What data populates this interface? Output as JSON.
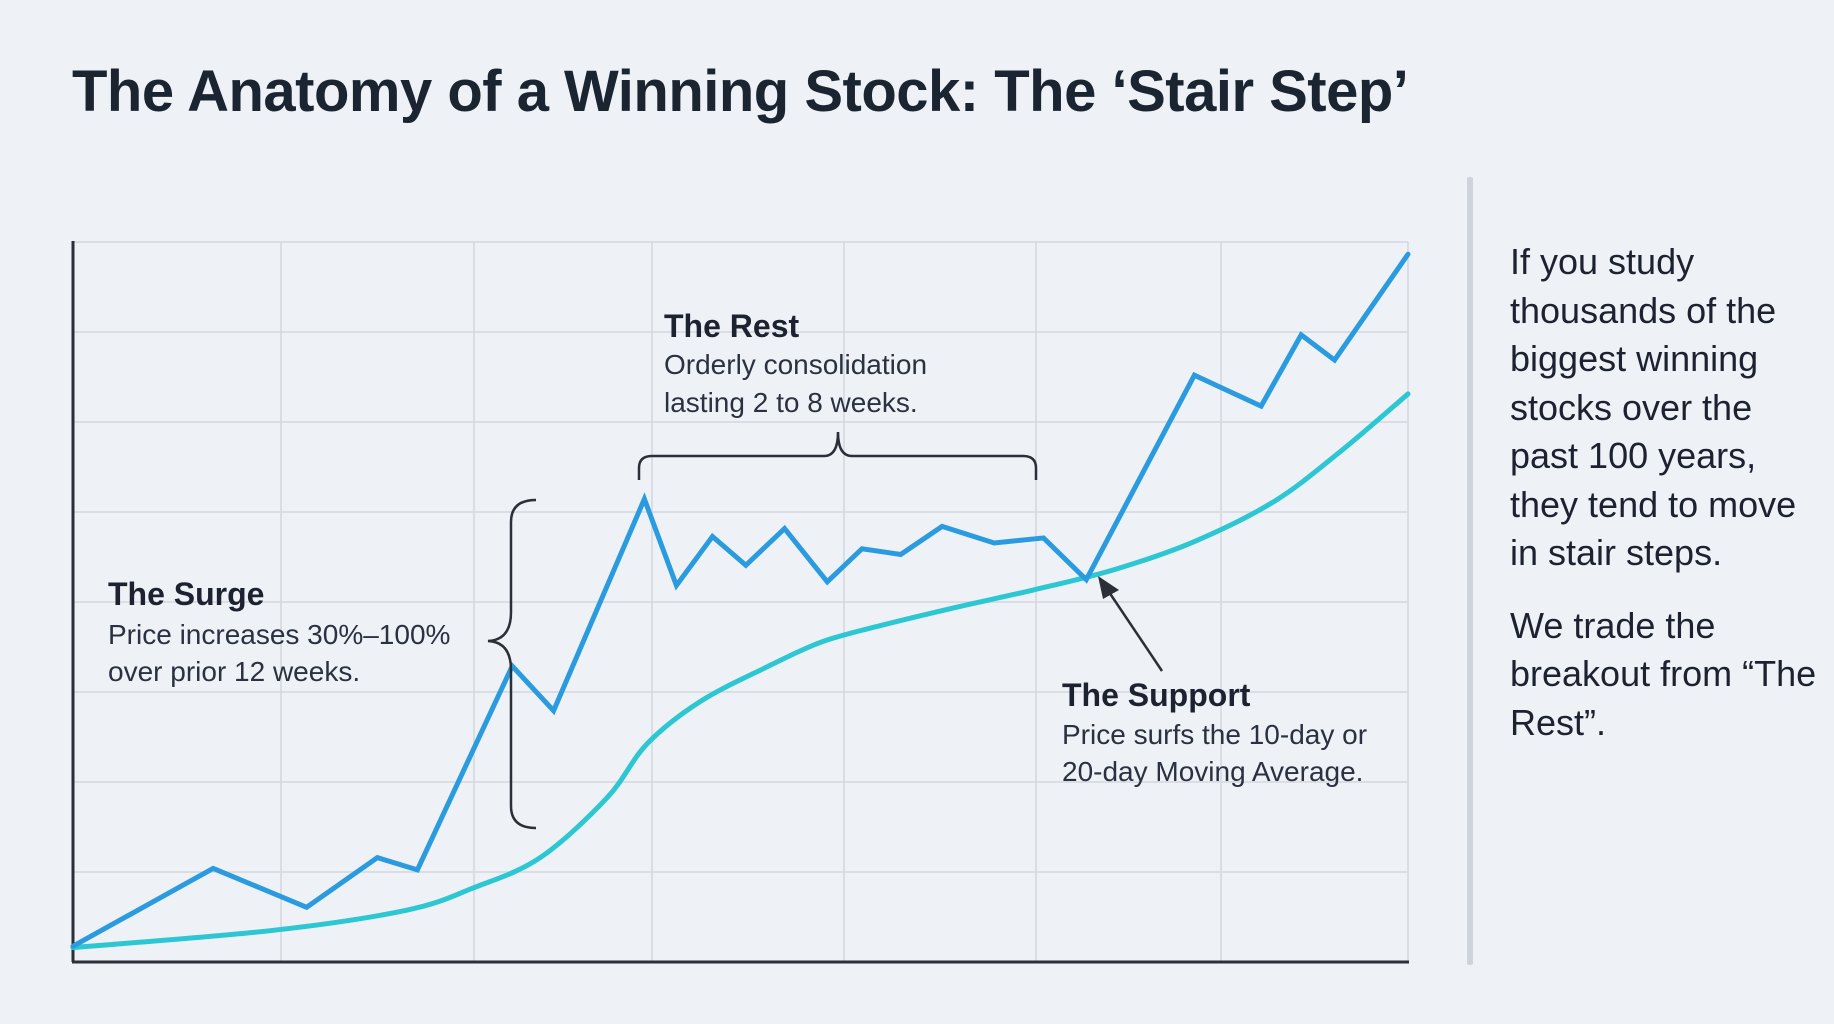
{
  "title": "The Anatomy of a Winning Stock: The ‘Stair Step’",
  "colors": {
    "background": "#eef1f5",
    "price_line": "#2b9be0",
    "moving_average": "#2cc7d3",
    "grid": "#d3d8df",
    "axis": "#2a2f38",
    "annotation": "#2a2f38"
  },
  "annotations": {
    "surge": {
      "title": "The Surge",
      "lines": [
        "Price increases 30%–100%",
        "over prior 12 weeks."
      ]
    },
    "rest": {
      "title": "The Rest",
      "lines": [
        "Orderly consolidation",
        "lasting 2 to 8 weeks."
      ]
    },
    "support": {
      "title": "The Support",
      "lines": [
        "Price surfs the 10-day or",
        "20-day Moving Average."
      ]
    }
  },
  "sidebar": {
    "paragraph1": "If you study thousands of the biggest winning stocks over the past 100 years, they tend to move in stair steps.",
    "paragraph2": "We trade the breakout from “The Rest”."
  },
  "chart_data": {
    "type": "line",
    "title": "The Anatomy of a Winning Stock: The ‘Stair Step’",
    "xlabel": "",
    "ylabel": "",
    "xlim": [
      0,
      100
    ],
    "ylim": [
      0,
      100
    ],
    "grid": true,
    "legend": "none",
    "series": [
      {
        "role": "price",
        "color": "#2b9be0",
        "x": [
          0,
          10.5,
          17.5,
          22.8,
          25.8,
          32.9,
          36.0,
          42.8,
          45.2,
          47.9,
          50.4,
          53.3,
          56.5,
          59.1,
          62.0,
          65.1,
          69.0,
          72.7,
          75.9,
          84.0,
          89.0,
          92.0,
          94.5,
          100
        ],
        "y": [
          2.2,
          13.0,
          7.6,
          14.5,
          12.8,
          41.1,
          34.9,
          64.3,
          52.3,
          59.1,
          55.1,
          60.2,
          52.8,
          57.4,
          56.6,
          60.5,
          58.2,
          58.9,
          53.1,
          81.5,
          77.2,
          87.1,
          83.6,
          98.3
        ]
      },
      {
        "role": "moving_average",
        "color": "#2cc7d3",
        "x": [
          0,
          15,
          25,
          30,
          35,
          40,
          43,
          47,
          52,
          56,
          60,
          66,
          72,
          78,
          84,
          90,
          95,
          100
        ],
        "y": [
          2.0,
          4.4,
          7.2,
          10.3,
          14.5,
          22.8,
          30.3,
          36.2,
          41.0,
          44.4,
          46.5,
          49.2,
          51.7,
          54.5,
          58.4,
          64.0,
          71.0,
          78.9
        ]
      }
    ]
  }
}
